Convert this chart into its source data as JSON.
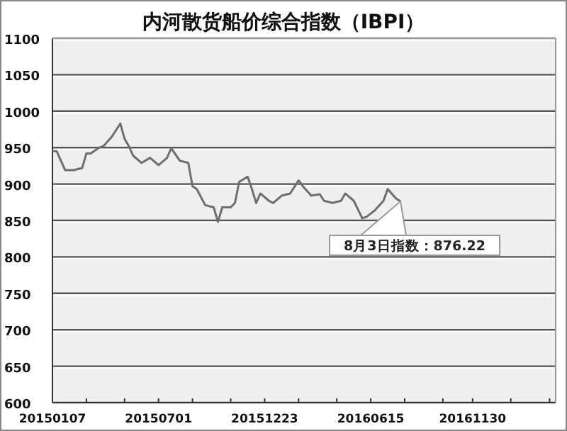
{
  "chart_data": {
    "type": "line",
    "title": "内河散货船价综合指数（IBPI）",
    "x": [
      "2015-01-07",
      "2015-01-14",
      "2015-01-28",
      "2015-02-11",
      "2015-02-25",
      "2015-03-04",
      "2015-03-11",
      "2015-03-25",
      "2015-04-01",
      "2015-04-15",
      "2015-04-29",
      "2015-05-06",
      "2015-05-13",
      "2015-05-20",
      "2015-06-03",
      "2015-06-17",
      "2015-07-01",
      "2015-07-15",
      "2015-07-22",
      "2015-08-05",
      "2015-08-19",
      "2015-08-26",
      "2015-09-02",
      "2015-09-16",
      "2015-09-30",
      "2015-10-07",
      "2015-10-14",
      "2015-10-28",
      "2015-11-04",
      "2015-11-11",
      "2015-11-25",
      "2015-12-02",
      "2015-12-09",
      "2015-12-16",
      "2015-12-30",
      "2016-01-06",
      "2016-01-20",
      "2016-02-03",
      "2016-02-17",
      "2016-02-24",
      "2016-03-09",
      "2016-03-23",
      "2016-03-30",
      "2016-04-13",
      "2016-04-27",
      "2016-05-04",
      "2016-05-18",
      "2016-06-01",
      "2016-06-08",
      "2016-06-22",
      "2016-07-06",
      "2016-07-13",
      "2016-07-27",
      "2016-08-03"
    ],
    "series": [
      {
        "color": "#6e6e6e",
        "values": [
          945,
          945,
          919,
          919,
          922,
          942,
          942,
          950,
          952,
          965,
          983,
          962,
          952,
          939,
          929,
          936,
          926,
          936,
          949,
          932,
          929,
          897,
          893,
          871,
          868,
          848,
          868,
          868,
          874,
          903,
          910,
          893,
          874,
          887,
          877,
          874,
          884,
          887,
          905,
          897,
          884,
          886,
          877,
          874,
          877,
          887,
          877,
          853,
          855,
          864,
          877,
          893,
          880,
          876.22
        ]
      }
    ],
    "xlim": [
      "2015-01-07",
      "2017-04-16"
    ],
    "xticks": [
      {
        "value": "2015-01-07",
        "label": "20150107"
      },
      {
        "value": "2015-03-04",
        "label": null
      },
      {
        "value": "2015-05-06",
        "label": null
      },
      {
        "value": "2015-07-01",
        "label": "20150701"
      },
      {
        "value": "2015-08-26",
        "label": null
      },
      {
        "value": "2015-10-28",
        "label": null
      },
      {
        "value": "2015-12-23",
        "label": "20151223"
      },
      {
        "value": "2016-02-17",
        "label": null
      },
      {
        "value": "2016-04-20",
        "label": null
      },
      {
        "value": "2016-06-15",
        "label": "20160615"
      },
      {
        "value": "2016-08-10",
        "label": null
      },
      {
        "value": "2016-10-12",
        "label": null
      },
      {
        "value": "2016-11-30",
        "label": "20161130"
      },
      {
        "value": "2017-02-01",
        "label": null
      },
      {
        "value": "2017-04-06",
        "label": null
      }
    ],
    "ylim": [
      600,
      1100
    ],
    "yticks": [
      600,
      650,
      700,
      750,
      800,
      850,
      900,
      950,
      1000,
      1050,
      1100
    ],
    "grid": "y",
    "annotations": [
      {
        "text": "8月3日指数：876.22",
        "x": "2016-08-03",
        "y": 876.22
      }
    ]
  }
}
